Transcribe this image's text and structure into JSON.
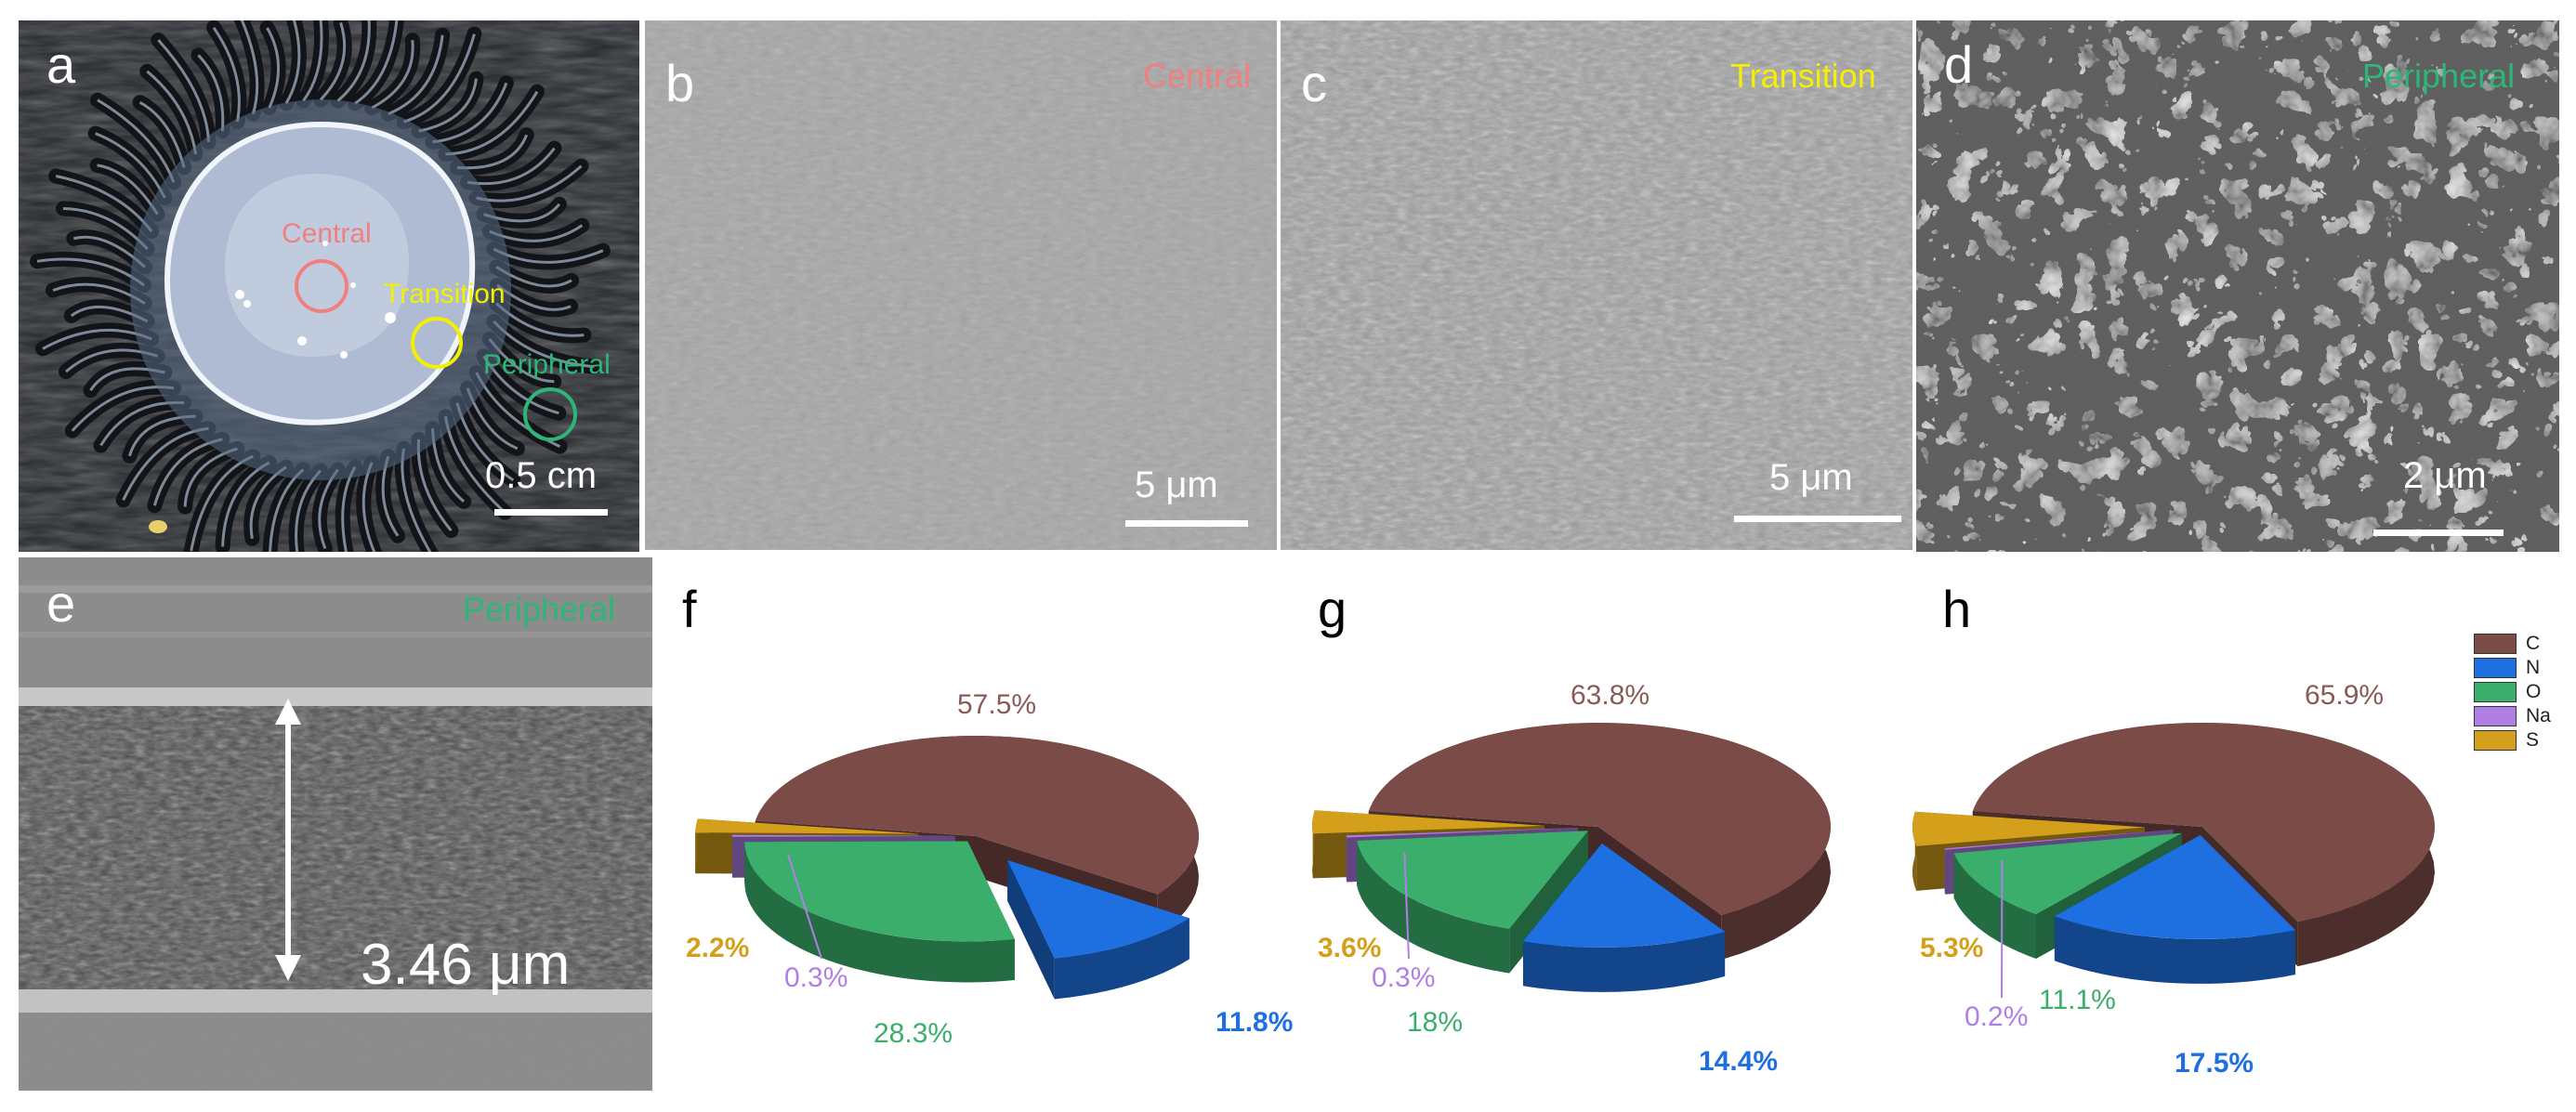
{
  "colors": {
    "C": "#7b4b48",
    "N": "#1e6fe0",
    "O": "#3aae6a",
    "Na": "#b07fe6",
    "S": "#d4a01c",
    "central": "#f08080",
    "transition": "#f4f000",
    "peripheral": "#2db67a"
  },
  "panels": {
    "a": {
      "label": "a",
      "tag_central": "Central",
      "tag_transition": "Transition",
      "tag_peripheral": "Peripheral",
      "scale": "0.5 cm"
    },
    "b": {
      "label": "b",
      "tag": "Central",
      "scale": "5 μm"
    },
    "c": {
      "label": "c",
      "tag": "Transition",
      "scale": "5 μm"
    },
    "d": {
      "label": "d",
      "tag": "Peripheral",
      "scale": "2 μm"
    },
    "e": {
      "label": "e",
      "tag": "Peripheral",
      "thickness": "3.46 μm"
    }
  },
  "chart_data": [
    {
      "type": "pie",
      "panel": "f",
      "categories": [
        "C",
        "N",
        "O",
        "Na",
        "S"
      ],
      "values": [
        57.5,
        11.8,
        28.3,
        0.3,
        2.2
      ],
      "labels": [
        "57.5%",
        "11.8%",
        "28.3%",
        "0.3%",
        "2.2%"
      ]
    },
    {
      "type": "pie",
      "panel": "g",
      "categories": [
        "C",
        "N",
        "O",
        "Na",
        "S"
      ],
      "values": [
        63.8,
        14.4,
        18,
        0.3,
        3.6
      ],
      "labels": [
        "63.8%",
        "14.4%",
        "18%",
        "0.3%",
        "3.6%"
      ]
    },
    {
      "type": "pie",
      "panel": "h",
      "categories": [
        "C",
        "N",
        "O",
        "Na",
        "S"
      ],
      "values": [
        65.9,
        17.5,
        11.1,
        0.2,
        5.3
      ],
      "labels": [
        "65.9%",
        "17.5%",
        "11.1%",
        "0.2%",
        "5.3%"
      ]
    }
  ],
  "legend": [
    "C",
    "N",
    "O",
    "Na",
    "S"
  ]
}
